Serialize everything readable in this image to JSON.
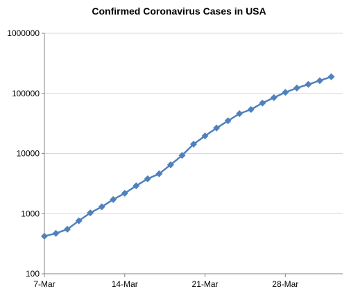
{
  "chart_data": {
    "type": "line",
    "title": "Confirmed Coronavirus Cases in USA",
    "xlabel": "",
    "ylabel": "",
    "y_scale": "log",
    "ylim": [
      100,
      1000000
    ],
    "y_ticks": [
      100,
      1000,
      10000,
      100000,
      1000000
    ],
    "y_tick_labels": [
      "100",
      "1000",
      "10000",
      "100000",
      "1000000"
    ],
    "xlim": [
      "2020-03-07",
      "2020-04-02"
    ],
    "x_ticks": [
      "2020-03-07",
      "2020-03-14",
      "2020-03-21",
      "2020-03-28"
    ],
    "x_tick_labels": [
      "7-Mar",
      "14-Mar",
      "21-Mar",
      "28-Mar"
    ],
    "grid": "horizontal",
    "legend": "none",
    "colors": {
      "series": "#4F81BD",
      "grid": "#d9d9d9",
      "axis": "#868686"
    },
    "series": [
      {
        "name": "",
        "x": [
          "2020-03-07",
          "2020-03-08",
          "2020-03-09",
          "2020-03-10",
          "2020-03-11",
          "2020-03-12",
          "2020-03-13",
          "2020-03-14",
          "2020-03-15",
          "2020-03-16",
          "2020-03-17",
          "2020-03-18",
          "2020-03-19",
          "2020-03-20",
          "2020-03-21",
          "2020-03-22",
          "2020-03-23",
          "2020-03-24",
          "2020-03-25",
          "2020-03-26",
          "2020-03-27",
          "2020-03-28",
          "2020-03-29",
          "2020-03-30",
          "2020-03-31",
          "2020-04-01"
        ],
        "values": [
          420,
          470,
          550,
          760,
          1030,
          1300,
          1720,
          2180,
          2900,
          3800,
          4600,
          6500,
          9300,
          14300,
          19600,
          26500,
          35000,
          46000,
          54000,
          69000,
          85000,
          104000,
          123000,
          141000,
          163000,
          189000
        ]
      }
    ]
  }
}
